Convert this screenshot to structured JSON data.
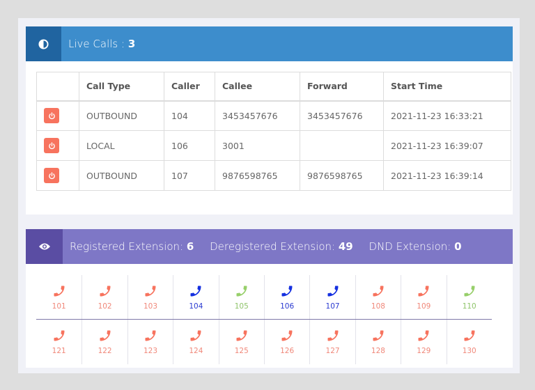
{
  "live_calls": {
    "label": "Live Calls : ",
    "count": "3",
    "icon": "half-circle-icon",
    "columns": [
      "",
      "Call Type",
      "Caller",
      "Callee",
      "Forward",
      "Start Time"
    ],
    "rows": [
      {
        "type": "OUTBOUND",
        "caller": "104",
        "callee": "3453457676",
        "forward": "3453457676",
        "start": "2021-11-23 16:33:21"
      },
      {
        "type": "LOCAL",
        "caller": "106",
        "callee": "3001",
        "forward": "",
        "start": "2021-11-23 16:39:07"
      },
      {
        "type": "OUTBOUND",
        "caller": "107",
        "callee": "9876598765",
        "forward": "9876598765",
        "start": "2021-11-23 16:39:14"
      }
    ]
  },
  "extensions": {
    "icon": "eye-icon",
    "registered_label": "Registered Extension: ",
    "registered": "6",
    "deregistered_label": "Deregistered Extension: ",
    "deregistered": "49",
    "dnd_label": "DND Extension: ",
    "dnd": "0",
    "status_colors": {
      "unregistered": "#f7735e",
      "busy": "#1530e0",
      "available": "#97cf6a"
    },
    "rows": [
      [
        {
          "n": "101",
          "s": "unregistered"
        },
        {
          "n": "102",
          "s": "unregistered"
        },
        {
          "n": "103",
          "s": "unregistered"
        },
        {
          "n": "104",
          "s": "busy"
        },
        {
          "n": "105",
          "s": "available"
        },
        {
          "n": "106",
          "s": "busy"
        },
        {
          "n": "107",
          "s": "busy"
        },
        {
          "n": "108",
          "s": "unregistered"
        },
        {
          "n": "109",
          "s": "unregistered"
        },
        {
          "n": "110",
          "s": "available"
        }
      ],
      [
        {
          "n": "121",
          "s": "unregistered"
        },
        {
          "n": "122",
          "s": "unregistered"
        },
        {
          "n": "123",
          "s": "unregistered"
        },
        {
          "n": "124",
          "s": "unregistered"
        },
        {
          "n": "125",
          "s": "unregistered"
        },
        {
          "n": "126",
          "s": "unregistered"
        },
        {
          "n": "127",
          "s": "unregistered"
        },
        {
          "n": "128",
          "s": "unregistered"
        },
        {
          "n": "129",
          "s": "unregistered"
        },
        {
          "n": "130",
          "s": "unregistered"
        }
      ]
    ]
  }
}
